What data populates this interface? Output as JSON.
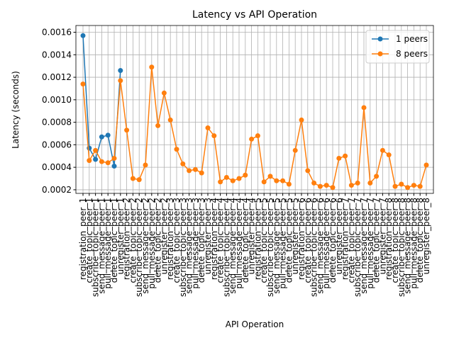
{
  "chart_data": {
    "type": "line",
    "title": "Latency vs API Operation",
    "xlabel": "API Operation",
    "ylabel": "Latency (seconds)",
    "categories": [
      "registration_peer_1",
      "create_topic_peer_1",
      "subscribe_topic_peer_1",
      "send_message_peer_1",
      "pull_message_peer_1",
      "delete_topic_peer_1",
      "unregister_peer_1",
      "registration_peer_2",
      "create_topic_peer_2",
      "subscribe_topic_peer_2",
      "send_message_peer_2",
      "pull_message_peer_2",
      "delete_topic_peer_2",
      "unregister_peer_2",
      "registration_peer_3",
      "create_topic_peer_3",
      "subscribe_topic_peer_3",
      "send_message_peer_3",
      "pull_message_peer_3",
      "delete_topic_peer_3",
      "unregister_peer_3",
      "registration_peer_4",
      "create_topic_peer_4",
      "subscribe_topic_peer_4",
      "send_message_peer_4",
      "pull_message_peer_4",
      "delete_topic_peer_4",
      "unregister_peer_4",
      "registration_peer_5",
      "create_topic_peer_5",
      "subscribe_topic_peer_5",
      "send_message_peer_5",
      "pull_message_peer_5",
      "delete_topic_peer_5",
      "unregister_peer_5",
      "registration_peer_6",
      "create_topic_peer_6",
      "subscribe_topic_peer_6",
      "send_message_peer_6",
      "pull_message_peer_6",
      "delete_topic_peer_6",
      "unregister_peer_6",
      "registration_peer_7",
      "create_topic_peer_7",
      "subscribe_topic_peer_7",
      "send_message_peer_7",
      "pull_message_peer_7",
      "delete_topic_peer_7",
      "unregister_peer_7",
      "registration_peer_8",
      "create_topic_peer_8",
      "subscribe_topic_peer_8",
      "send_message_peer_8",
      "pull_message_peer_8",
      "delete_topic_peer_8",
      "unregister_peer_8"
    ],
    "series": [
      {
        "name": "1 peers",
        "color": "#1f77b4",
        "values": [
          0.00157,
          0.00057,
          0.00047,
          0.00067,
          0.000685,
          0.00041,
          0.00126,
          null,
          null,
          null,
          null,
          null,
          null,
          null,
          null,
          null,
          null,
          null,
          null,
          null,
          null,
          null,
          null,
          null,
          null,
          null,
          null,
          null,
          null,
          null,
          null,
          null,
          null,
          null,
          null,
          null,
          null,
          null,
          null,
          null,
          null,
          null,
          null,
          null,
          null,
          null,
          null,
          null,
          null,
          null,
          null,
          null,
          null,
          null,
          null,
          null
        ]
      },
      {
        "name": "8 peers",
        "color": "#ff7f0e",
        "values": [
          0.00114,
          0.00046,
          0.00055,
          0.00045,
          0.00044,
          0.00048,
          0.00117,
          0.00073,
          0.0003,
          0.00029,
          0.00042,
          0.00129,
          0.00077,
          0.00106,
          0.00082,
          0.00056,
          0.00043,
          0.00037,
          0.00038,
          0.00035,
          0.00075,
          0.00068,
          0.00027,
          0.00031,
          0.00028,
          0.0003,
          0.00033,
          0.00065,
          0.00068,
          0.00027,
          0.00032,
          0.00028,
          0.00028,
          0.00025,
          0.00055,
          0.00082,
          0.00037,
          0.00026,
          0.00023,
          0.00024,
          0.00022,
          0.00048,
          0.0005,
          0.00024,
          0.00026,
          0.00093,
          0.00026,
          0.00032,
          0.00055,
          0.00051,
          0.00023,
          0.00025,
          0.00022,
          0.00024,
          0.00023,
          0.00042
        ]
      }
    ],
    "ylim": [
      0.000168,
      0.00166
    ],
    "yticks": [
      0.0002,
      0.0004,
      0.0006,
      0.0008,
      {
        "value": 0.001,
        "label": "0.0010"
      },
      0.0012,
      0.0014,
      0.0016
    ],
    "grid": true,
    "legend": "upper right"
  }
}
